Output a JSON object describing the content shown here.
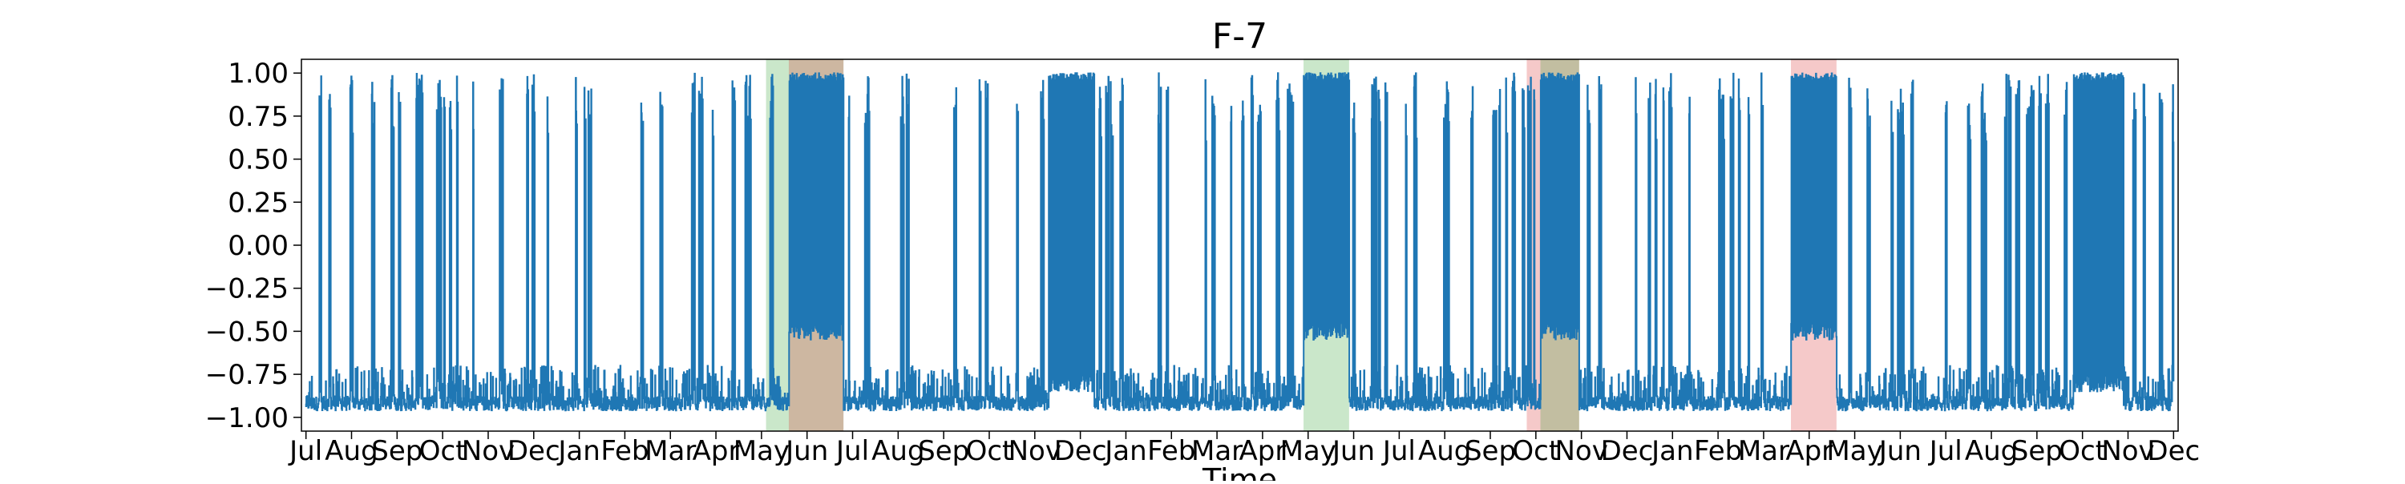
{
  "chart_data": {
    "type": "line",
    "title": "F-7",
    "xlabel": "Time",
    "ylabel": "",
    "ylim": [
      -1.08,
      1.08
    ],
    "y_ticks": [
      "1.00",
      "0.75",
      "0.50",
      "0.25",
      "0.00",
      "−0.25",
      "−0.50",
      "−0.75",
      "−1.00"
    ],
    "y_tick_values": [
      1.0,
      0.75,
      0.5,
      0.25,
      0.0,
      -0.25,
      -0.5,
      -0.75,
      -1.0
    ],
    "x_ticks": [
      "Jul",
      "Aug",
      "Sep",
      "Oct",
      "Nov",
      "Dec",
      "Jan",
      "Feb",
      "Mar",
      "Apr",
      "May",
      "Jun",
      "Jul",
      "Aug",
      "Sep",
      "Oct",
      "Nov",
      "Dec",
      "Jan",
      "Feb",
      "Mar",
      "Apr",
      "May",
      "Jun",
      "Jul",
      "Aug",
      "Sep",
      "Oct",
      "Nov",
      "Dec",
      "Jan",
      "Feb",
      "Mar",
      "Apr",
      "May",
      "Jun",
      "Jul",
      "Aug",
      "Sep",
      "Oct",
      "Nov",
      "Dec"
    ],
    "x_tick_months": [
      0,
      1,
      2,
      3,
      4,
      5,
      6,
      7,
      8,
      9,
      10,
      11,
      12,
      13,
      14,
      15,
      16,
      17,
      18,
      19,
      20,
      21,
      22,
      23,
      24,
      25,
      26,
      27,
      28,
      29,
      30,
      31,
      32,
      33,
      34,
      35,
      36,
      37,
      38,
      39,
      40,
      41
    ],
    "x_range_months": [
      -0.1,
      41.1
    ],
    "grid": false,
    "line_color": "#1f77b4",
    "shaded_regions": [
      {
        "start": 10.1,
        "end": 10.6,
        "color": "#2ca02c"
      },
      {
        "start": 10.6,
        "end": 11.8,
        "color": "#2ca02c"
      },
      {
        "start": 10.6,
        "end": 11.8,
        "color": "#d62728"
      },
      {
        "start": 21.9,
        "end": 22.9,
        "color": "#2ca02c"
      },
      {
        "start": 26.8,
        "end": 27.1,
        "color": "#d62728"
      },
      {
        "start": 27.1,
        "end": 27.95,
        "color": "#d62728"
      },
      {
        "start": 27.1,
        "end": 27.95,
        "color": "#2ca02c"
      },
      {
        "start": 32.6,
        "end": 33.6,
        "color": "#d62728"
      }
    ],
    "series": [
      {
        "values_summary": "oscillating signal between -1.00 and 1.00",
        "baseline": -0.92,
        "dense_segments": [
          {
            "start": 10.6,
            "end": 11.8,
            "low": -0.55,
            "high": 1.0
          },
          {
            "start": 21.9,
            "end": 22.9,
            "low": -0.55,
            "high": 1.0
          },
          {
            "start": 27.1,
            "end": 27.95,
            "low": -0.55,
            "high": 1.0
          },
          {
            "start": 32.6,
            "end": 33.6,
            "low": -0.55,
            "high": 1.0
          },
          {
            "start": 16.3,
            "end": 17.3,
            "low": -0.85,
            "high": 1.0
          },
          {
            "start": 38.8,
            "end": 39.9,
            "low": -0.85,
            "high": 1.0
          }
        ]
      }
    ]
  }
}
